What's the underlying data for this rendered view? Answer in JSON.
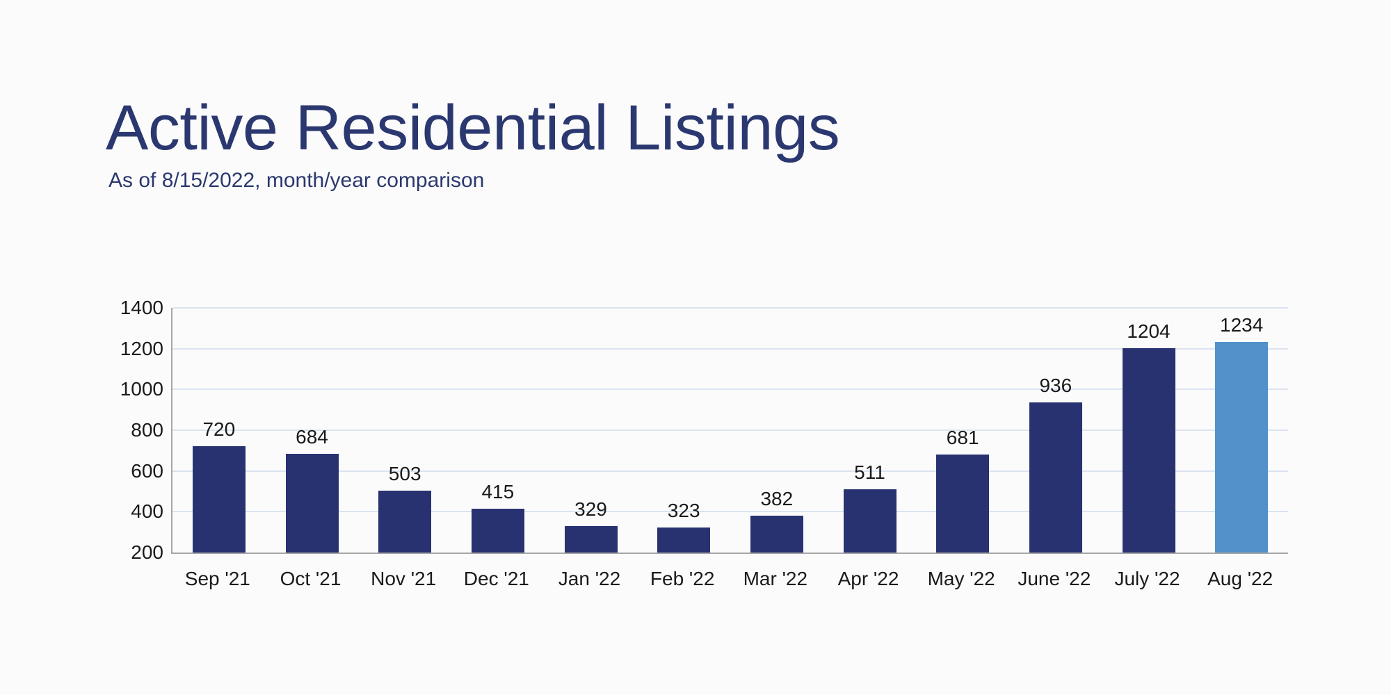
{
  "header": {
    "title": "Active Residential Listings",
    "subtitle": "As of 8/15/2022, month/year comparison"
  },
  "chart_data": {
    "type": "bar",
    "title": "Active Residential Listings",
    "subtitle": "As of 8/15/2022, month/year comparison",
    "categories": [
      "Sep '21",
      "Oct '21",
      "Nov '21",
      "Dec '21",
      "Jan '22",
      "Feb '22",
      "Mar '22",
      "Apr '22",
      "May '22",
      "June '22",
      "July '22",
      "Aug '22"
    ],
    "values": [
      720,
      684,
      503,
      415,
      329,
      323,
      382,
      511,
      681,
      936,
      1204,
      1234
    ],
    "yticks": [
      200,
      400,
      600,
      800,
      1000,
      1200,
      1400
    ],
    "ylim": [
      200,
      1400
    ],
    "xlabel": "",
    "ylabel": "",
    "grid": true,
    "legend_position": "none",
    "highlight_index": 11
  },
  "colors": {
    "bar": "#283271",
    "bar_highlight": "#5391CB",
    "title": "#2B3870",
    "subtitle": "#2B3870",
    "gridline": "#DBE3F1",
    "axis": "#A6A6A6",
    "tick_label": "#1A1A1A",
    "background": "#FBFBFB"
  }
}
